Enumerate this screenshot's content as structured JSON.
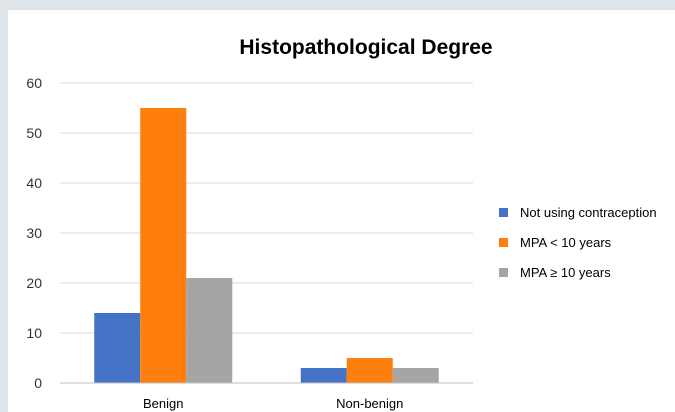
{
  "chart_data": {
    "type": "bar",
    "title": "Histopathological Degree",
    "xlabel": "",
    "ylabel": "",
    "categories": [
      "Benign",
      "Non-benign"
    ],
    "series": [
      {
        "name": "Not using contraception",
        "color": "#4472c4",
        "values": [
          14,
          3
        ]
      },
      {
        "name": "MPA < 10 years",
        "color": "#ff7f0e",
        "values": [
          55,
          5
        ]
      },
      {
        "name": "MPA ≥ 10 years",
        "color": "#a5a5a5",
        "values": [
          21,
          3
        ]
      }
    ],
    "ylim": [
      0,
      60
    ],
    "yticks": [
      0,
      10,
      20,
      30,
      40,
      50,
      60
    ],
    "grid": true,
    "legend_position": "right"
  }
}
